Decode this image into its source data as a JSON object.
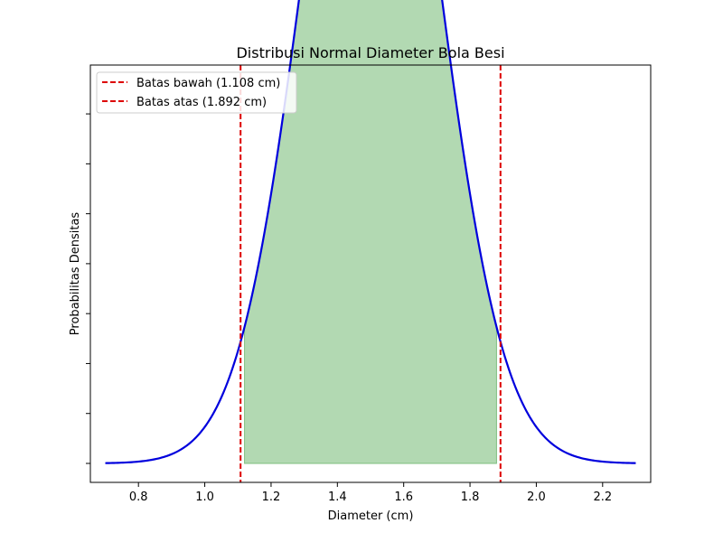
{
  "chart_data": {
    "type": "line",
    "title": "Distribusi Normal Diameter Bola Besi",
    "xlabel": "Diameter (cm)",
    "ylabel": "Probabilitas Densitas",
    "xlim": [
      0.655,
      2.345
    ],
    "ylim": [
      -0.0456,
      0.9574
    ],
    "xticks": [
      0.8,
      1.0,
      1.2,
      1.4,
      1.6,
      1.8,
      2.0,
      2.2
    ],
    "xtick_labels": [
      "0.8",
      "1.0",
      "1.2",
      "1.4",
      "1.6",
      "1.8",
      "2.0",
      "2.2"
    ],
    "yticks": [
      0.0,
      0.12,
      0.24,
      0.36,
      0.48,
      0.6,
      0.72,
      0.84
    ],
    "y_tick_labels_shown": false,
    "grid": false,
    "legend_position": "top-left",
    "distribution": {
      "mean": 1.5,
      "std": 0.2,
      "x_range": [
        0.7,
        2.3
      ]
    },
    "series": [
      {
        "name": "",
        "kind": "curve",
        "color": "#0000dd"
      },
      {
        "name": "Batas bawah (1.108 cm)",
        "kind": "vline",
        "x": 1.108,
        "color": "#dd0000",
        "style": "dashed"
      },
      {
        "name": "Batas atas (1.892 cm)",
        "kind": "vline",
        "x": 1.892,
        "color": "#dd0000",
        "style": "dashed"
      }
    ],
    "shaded_region": {
      "x_start": 1.12,
      "x_end": 1.88,
      "color": "#b2d9b2",
      "edge_color": "#7fbf7f"
    }
  }
}
